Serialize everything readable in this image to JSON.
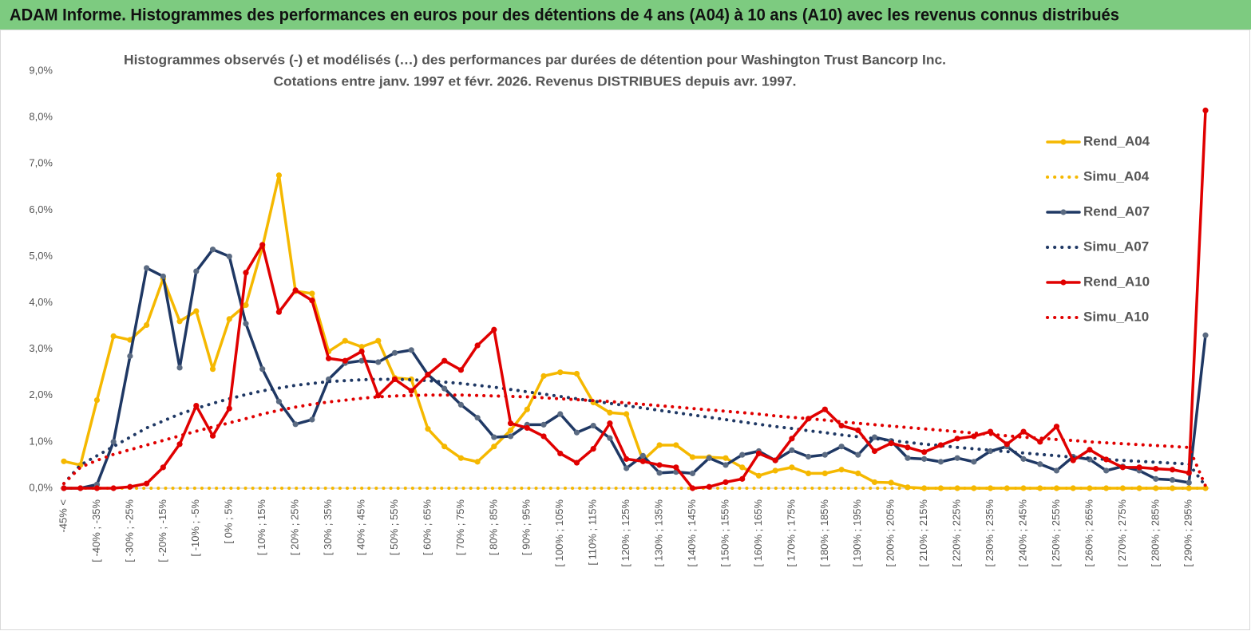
{
  "chart_data": {
    "type": "line",
    "title": "ADAM Informe. Histogrammes des performances en euros pour des détentions de 4 ans (A04) à 10 ans (A10) avec les revenus connus distribués",
    "subtitle": [
      "Histogrammes observés (-) et modélisés (…) des performances par durées de détention pour Washington Trust Bancorp Inc.",
      "Cotations entre janv. 1997 et févr. 2026. Revenus DISTRIBUES depuis avr. 1997."
    ],
    "categories": [
      "-45% <",
      null,
      "[ -40% ; -35%",
      null,
      "[ -30% ; -25%",
      null,
      "[ -20% ; -15%",
      null,
      "[ -10% ; -5%",
      null,
      "[ 0% ; 5%",
      null,
      "[ 10% ; 15%",
      null,
      "[ 20% ; 25%",
      null,
      "[ 30% ; 35%",
      null,
      "[ 40% ; 45%",
      null,
      "[ 50% ; 55%",
      null,
      "[ 60% ; 65%",
      null,
      "[ 70% ; 75%",
      null,
      "[ 80% ; 85%",
      null,
      "[ 90% ; 95%",
      null,
      "[ 100% ; 105%",
      null,
      "[ 110% ; 115%",
      null,
      "[ 120% ; 125%",
      null,
      "[ 130% ; 135%",
      null,
      "[ 140% ; 145%",
      null,
      "[ 150% ; 155%",
      null,
      "[ 160% ; 165%",
      null,
      "[ 170% ; 175%",
      null,
      "[ 180% ; 185%",
      null,
      "[ 190% ; 195%",
      null,
      "[ 200% ; 205%",
      null,
      "[ 210% ; 215%",
      null,
      "[ 220% ; 225%",
      null,
      "[ 230% ; 235%",
      null,
      "[ 240% ; 245%",
      null,
      "[ 250% ; 255%",
      null,
      "[ 260% ; 265%",
      null,
      "[ 270% ; 275%",
      null,
      "[ 280% ; 285%",
      null,
      "[ 290% ; 295%",
      null
    ],
    "ylim": [
      0,
      9
    ],
    "yticks": [
      {
        "value": 0,
        "label": "0,0%"
      },
      {
        "value": 1,
        "label": "1,0%"
      },
      {
        "value": 2,
        "label": "2,0%"
      },
      {
        "value": 3,
        "label": "3,0%"
      },
      {
        "value": 4,
        "label": "4,0%"
      },
      {
        "value": 5,
        "label": "5,0%"
      },
      {
        "value": 6,
        "label": "6,0%"
      },
      {
        "value": 7,
        "label": "7,0%"
      },
      {
        "value": 8,
        "label": "8,0%"
      },
      {
        "value": 9,
        "label": "9,0%"
      }
    ],
    "grid": false,
    "legend": "right",
    "series": [
      {
        "name": "Rend_A04",
        "color": "#f5b800",
        "style": "solid",
        "markers": true,
        "marker_color": "#f5b800",
        "values": [
          0.58,
          0.5,
          1.9,
          3.28,
          3.2,
          3.52,
          4.52,
          3.6,
          3.82,
          2.57,
          3.65,
          3.95,
          5.2,
          6.75,
          4.25,
          4.2,
          2.95,
          3.18,
          3.05,
          3.18,
          2.38,
          2.35,
          1.28,
          0.9,
          0.65,
          0.57,
          0.9,
          1.25,
          1.7,
          2.42,
          2.5,
          2.47,
          1.85,
          1.63,
          1.6,
          0.6,
          0.93,
          0.93,
          0.67,
          0.67,
          0.65,
          0.45,
          0.27,
          0.38,
          0.45,
          0.32,
          0.32,
          0.4,
          0.32,
          0.13,
          0.12,
          0.02,
          0,
          0,
          0,
          0,
          0,
          0,
          0,
          0,
          0,
          0,
          0,
          0,
          0,
          0,
          0,
          0,
          0,
          0
        ]
      },
      {
        "name": "Simu_A04",
        "color": "#f5b800",
        "style": "dotted",
        "markers": false,
        "values": [
          0,
          0,
          0,
          0,
          0,
          0,
          0,
          0,
          0,
          0,
          0,
          0,
          0,
          0,
          0,
          0,
          0,
          0,
          0,
          0,
          0,
          0,
          0,
          0,
          0,
          0,
          0,
          0,
          0,
          0,
          0,
          0,
          0,
          0,
          0,
          0,
          0,
          0,
          0,
          0,
          0,
          0,
          0,
          0,
          0,
          0,
          0,
          0,
          0,
          0,
          0,
          0,
          0,
          0,
          0,
          0,
          0,
          0,
          0,
          0,
          0,
          0,
          0,
          0,
          0,
          0,
          0,
          0,
          0,
          0
        ]
      },
      {
        "name": "Rend_A07",
        "color": "#1f3864",
        "style": "solid",
        "markers": true,
        "marker_color": "#5b6b82",
        "values": [
          0,
          0,
          0.08,
          1.0,
          2.85,
          4.75,
          4.57,
          2.6,
          4.68,
          5.15,
          5.0,
          3.55,
          2.57,
          1.87,
          1.38,
          1.48,
          2.35,
          2.7,
          2.75,
          2.72,
          2.92,
          2.98,
          2.45,
          2.15,
          1.8,
          1.52,
          1.1,
          1.12,
          1.37,
          1.37,
          1.6,
          1.2,
          1.35,
          1.08,
          0.43,
          0.7,
          0.33,
          0.35,
          0.32,
          0.65,
          0.5,
          0.72,
          0.8,
          0.6,
          0.82,
          0.68,
          0.72,
          0.9,
          0.72,
          1.1,
          1.02,
          0.65,
          0.63,
          0.57,
          0.65,
          0.57,
          0.8,
          0.9,
          0.63,
          0.52,
          0.38,
          0.68,
          0.62,
          0.38,
          0.47,
          0.38,
          0.2,
          0.18,
          0.12,
          3.3
        ]
      },
      {
        "name": "Simu_A07",
        "color": "#1f3864",
        "style": "dotted",
        "markers": false,
        "values": [
          0.1,
          0.5,
          0.7,
          0.9,
          1.1,
          1.3,
          1.45,
          1.6,
          1.72,
          1.83,
          1.93,
          2.02,
          2.1,
          2.16,
          2.22,
          2.26,
          2.3,
          2.32,
          2.34,
          2.35,
          2.35,
          2.34,
          2.32,
          2.29,
          2.26,
          2.22,
          2.18,
          2.13,
          2.08,
          2.03,
          1.98,
          1.93,
          1.88,
          1.83,
          1.78,
          1.73,
          1.68,
          1.63,
          1.58,
          1.53,
          1.48,
          1.43,
          1.38,
          1.33,
          1.29,
          1.24,
          1.2,
          1.15,
          1.11,
          1.07,
          1.03,
          0.99,
          0.95,
          0.92,
          0.88,
          0.85,
          0.82,
          0.79,
          0.76,
          0.73,
          0.7,
          0.67,
          0.65,
          0.62,
          0.6,
          0.58,
          0.56,
          0.54,
          0.52,
          0.05
        ]
      },
      {
        "name": "Rend_A10",
        "color": "#e00000",
        "style": "solid",
        "markers": true,
        "marker_color": "#e00000",
        "values": [
          0,
          0,
          0,
          0,
          0.03,
          0.1,
          0.45,
          0.95,
          1.78,
          1.13,
          1.72,
          4.65,
          5.25,
          3.8,
          4.27,
          4.05,
          2.8,
          2.75,
          2.95,
          2.0,
          2.35,
          2.1,
          2.45,
          2.75,
          2.55,
          3.08,
          3.42,
          1.4,
          1.3,
          1.12,
          0.75,
          0.55,
          0.85,
          1.4,
          0.63,
          0.58,
          0.5,
          0.45,
          0,
          0.03,
          0.13,
          0.2,
          0.75,
          0.6,
          1.07,
          1.5,
          1.7,
          1.35,
          1.25,
          0.8,
          0.97,
          0.88,
          0.78,
          0.93,
          1.07,
          1.12,
          1.22,
          0.95,
          1.22,
          1.0,
          1.33,
          0.6,
          0.83,
          0.62,
          0.45,
          0.45,
          0.42,
          0.4,
          0.33,
          8.15
        ]
      },
      {
        "name": "Simu_A10",
        "color": "#e00000",
        "style": "dotted",
        "markers": false,
        "values": [
          0.1,
          0.45,
          0.6,
          0.73,
          0.83,
          0.93,
          1.03,
          1.13,
          1.23,
          1.32,
          1.41,
          1.5,
          1.6,
          1.68,
          1.75,
          1.81,
          1.86,
          1.9,
          1.94,
          1.97,
          1.99,
          2.0,
          2.01,
          2.01,
          2.01,
          2.0,
          1.99,
          1.98,
          1.97,
          1.95,
          1.93,
          1.91,
          1.89,
          1.87,
          1.84,
          1.81,
          1.78,
          1.75,
          1.72,
          1.69,
          1.66,
          1.63,
          1.6,
          1.56,
          1.53,
          1.5,
          1.47,
          1.43,
          1.4,
          1.37,
          1.34,
          1.31,
          1.28,
          1.25,
          1.22,
          1.19,
          1.16,
          1.13,
          1.1,
          1.08,
          1.05,
          1.03,
          1.0,
          0.98,
          0.96,
          0.94,
          0.92,
          0.9,
          0.88,
          0.05
        ]
      }
    ]
  }
}
